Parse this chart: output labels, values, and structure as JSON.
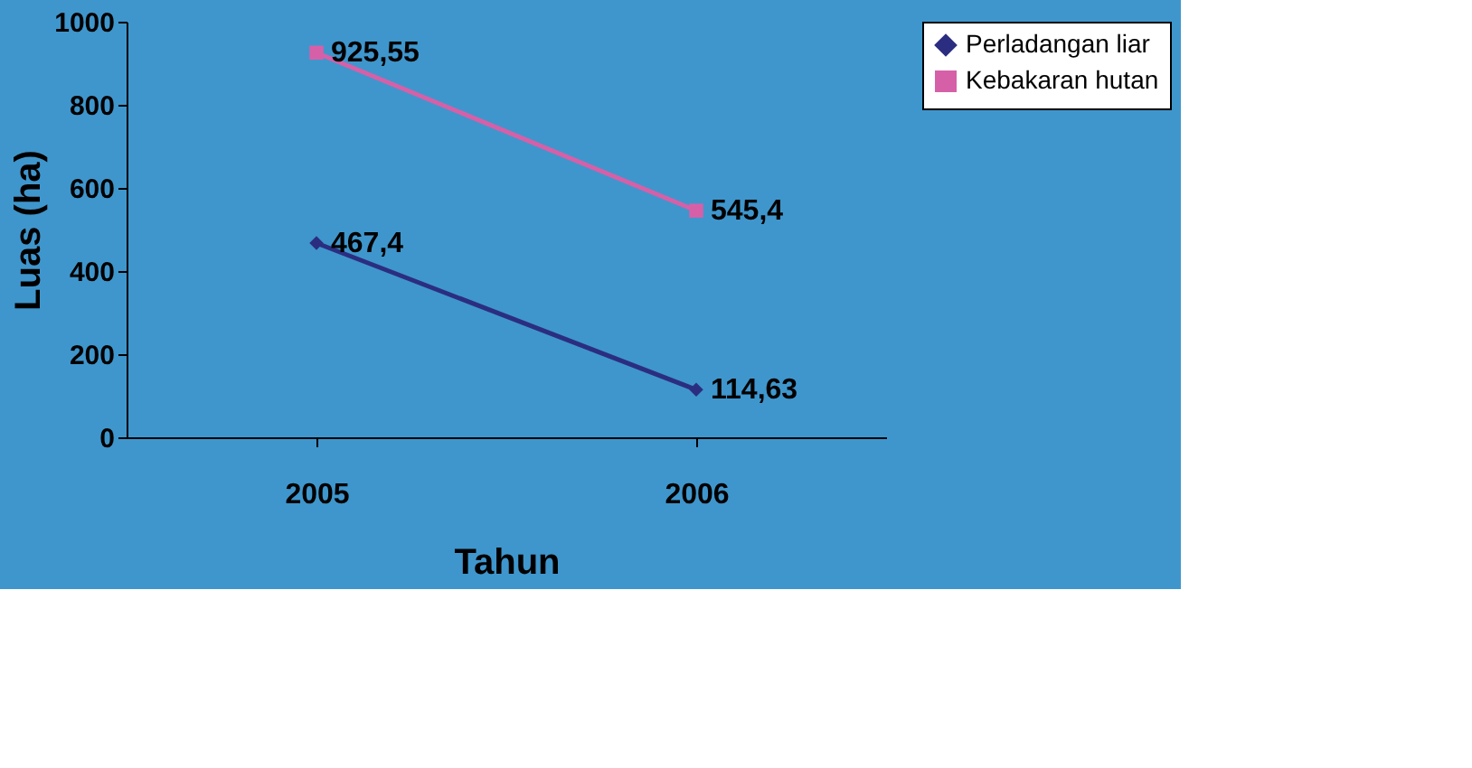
{
  "chart_data": {
    "type": "line",
    "xlabel": "Tahun",
    "ylabel": "Luas (ha)",
    "categories": [
      "2005",
      "2006"
    ],
    "series": [
      {
        "name": "Perladangan liar",
        "color": "#2b2e80",
        "marker": "diamond",
        "values": [
          467.4,
          114.63
        ],
        "value_labels": [
          "467,4",
          "114,63"
        ]
      },
      {
        "name": "Kebakaran hutan",
        "color": "#d660a8",
        "marker": "square",
        "values": [
          925.55,
          545.4
        ],
        "value_labels": [
          "925,55",
          "545,4"
        ]
      }
    ],
    "ylim": [
      0,
      1000
    ],
    "yticks": [
      0,
      200,
      400,
      600,
      800,
      1000
    ],
    "grid": false,
    "legend": "right",
    "line_style": "solid"
  }
}
